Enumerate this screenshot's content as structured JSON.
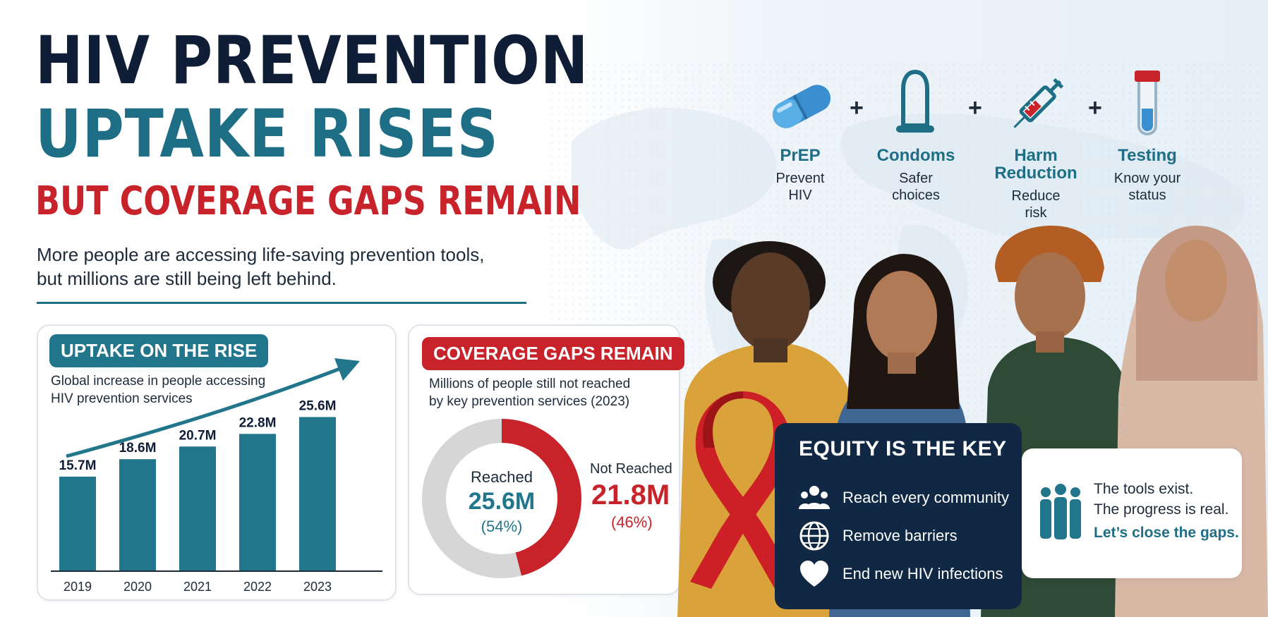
{
  "headline": {
    "line1": "HIV PREVENTION",
    "line2": "UPTAKE RISES",
    "line3": "BUT COVERAGE GAPS REMAIN",
    "intro_line1": "More people are accessing life-saving prevention tools,",
    "intro_line2": "but millions are still being left behind."
  },
  "uptake_card": {
    "title": "UPTAKE ON THE RISE",
    "desc_line1": "Global increase in people accessing",
    "desc_line2": "HIV prevention services"
  },
  "gaps_card": {
    "title": "COVERAGE GAPS REMAIN",
    "desc_line1": "Millions of people still not reached",
    "desc_line2": "by key prevention services (2023)",
    "reached_label": "Reached",
    "reached_value": "25.6M",
    "reached_pct": "(54%)",
    "not_reached_label": "Not Reached",
    "not_reached_value": "21.8M",
    "not_reached_pct": "(46%)"
  },
  "chart_data": [
    {
      "type": "bar",
      "categories": [
        "2019",
        "2020",
        "2021",
        "2022",
        "2023"
      ],
      "values": [
        15.7,
        18.6,
        20.7,
        22.8,
        25.6
      ],
      "value_labels": [
        "15.7M",
        "18.6M",
        "20.7M",
        "22.8M",
        "25.6M"
      ],
      "title": "UPTAKE ON THE RISE",
      "ylim": [
        0,
        28
      ]
    },
    {
      "type": "pie",
      "categories": [
        "Reached",
        "Not Reached"
      ],
      "values": [
        25.6,
        21.8
      ],
      "percent": [
        54,
        46
      ],
      "title": "COVERAGE GAPS REMAIN"
    }
  ],
  "tools": [
    {
      "title": "PrEP",
      "desc1": "Prevent",
      "desc2": "HIV",
      "icon": "pill-icon"
    },
    {
      "title": "Condoms",
      "desc1": "Safer",
      "desc2": "choices",
      "icon": "condom-icon"
    },
    {
      "title": "Harm",
      "title2": "Reduction",
      "desc1": "Reduce",
      "desc2": "risk",
      "icon": "syringe-icon"
    },
    {
      "title": "Testing",
      "desc1": "Know your",
      "desc2": "status",
      "icon": "test-tube-icon"
    }
  ],
  "plus": "+",
  "equity": {
    "title": "EQUITY IS THE KEY",
    "items": [
      {
        "text": "Reach every community",
        "icon": "community-icon"
      },
      {
        "text": "Remove barriers",
        "icon": "globe-icon"
      },
      {
        "text": "End new HIV infections",
        "icon": "heart-icon"
      }
    ]
  },
  "closing": {
    "line1": "The tools exist.",
    "line2": "The progress is real.",
    "line3": "Let’s close the gaps."
  },
  "colors": {
    "navy": "#0f1e36",
    "teal": "#1e6f86",
    "red": "#c8222a",
    "equity_bg": "#102843",
    "donut_grey": "#d6d6d6"
  }
}
